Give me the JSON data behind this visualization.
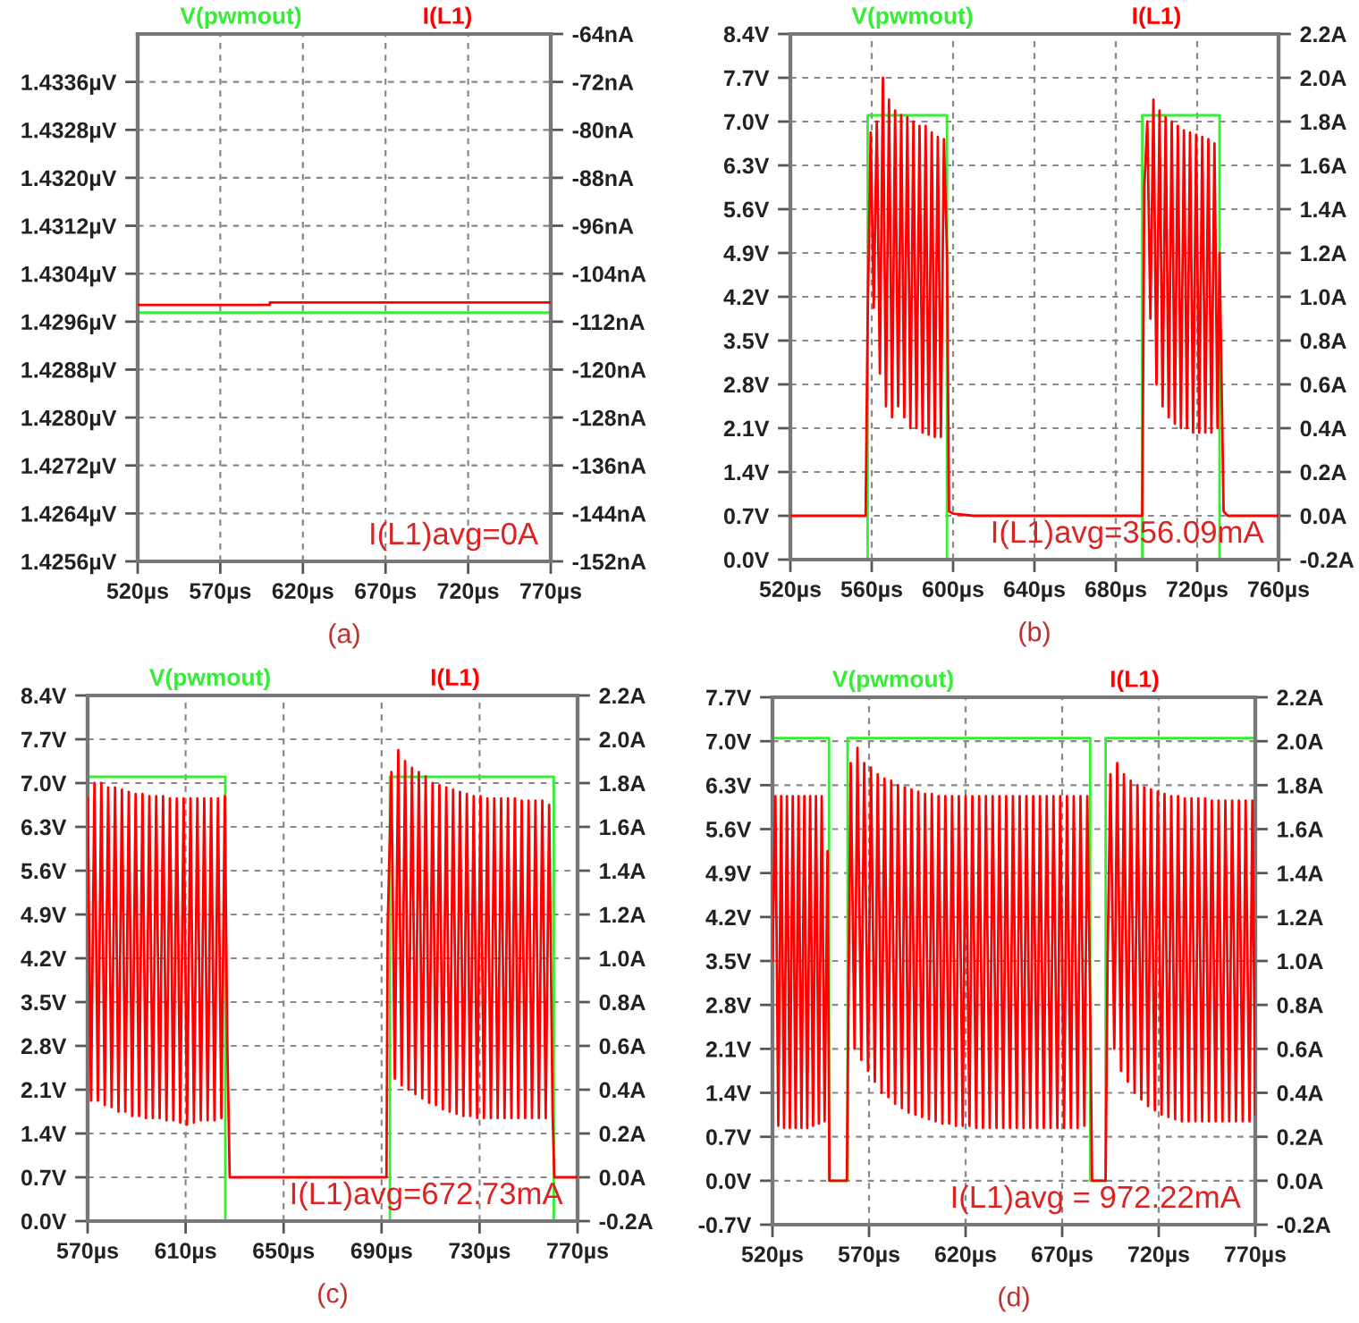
{
  "chart_data": [
    {
      "type": "line",
      "xlabel": "(a)",
      "legend": "top",
      "grid": true,
      "annotations": [
        "I(L1)avg=0A"
      ],
      "xlim": [
        520,
        770
      ],
      "xticks": [
        {
          "value": 520,
          "label": "520µs"
        },
        {
          "value": 570,
          "label": "570µs"
        },
        {
          "value": 620,
          "label": "620µs"
        },
        {
          "value": 670,
          "label": "670µs"
        },
        {
          "value": 720,
          "label": "720µs"
        },
        {
          "value": 770,
          "label": "770µs"
        }
      ],
      "ylim": [
        1.4256,
        1.4344
      ],
      "yticks": [
        {
          "value": 1.4256,
          "label": "1.4256µV"
        },
        {
          "value": 1.4264,
          "label": "1.4264µV"
        },
        {
          "value": 1.4272,
          "label": "1.4272µV"
        },
        {
          "value": 1.428,
          "label": "1.4280µV"
        },
        {
          "value": 1.4288,
          "label": "1.4288µV"
        },
        {
          "value": 1.4296,
          "label": "1.4296µV"
        },
        {
          "value": 1.4304,
          "label": "1.4304µV"
        },
        {
          "value": 1.4312,
          "label": "1.4312µV"
        },
        {
          "value": 1.432,
          "label": "1.4320µV"
        },
        {
          "value": 1.4328,
          "label": "1.4328µV"
        },
        {
          "value": 1.4336,
          "label": "1.4336µV"
        }
      ],
      "y2lim": [
        -152,
        -64
      ],
      "y2ticks": [
        {
          "value": -152,
          "label": "-152nA"
        },
        {
          "value": -144,
          "label": "-144nA"
        },
        {
          "value": -136,
          "label": "-136nA"
        },
        {
          "value": -128,
          "label": "-128nA"
        },
        {
          "value": -120,
          "label": "-120nA"
        },
        {
          "value": -112,
          "label": "-112nA"
        },
        {
          "value": -104,
          "label": "-104nA"
        },
        {
          "value": -96,
          "label": "-96nA"
        },
        {
          "value": -88,
          "label": "-88nA"
        },
        {
          "value": -80,
          "label": "-80nA"
        },
        {
          "value": -72,
          "label": "-72nA"
        },
        {
          "value": -64,
          "label": "-64nA"
        }
      ],
      "series": [
        {
          "name": "V(pwmout)",
          "color": "#33ee33",
          "x": [
            520,
            770
          ],
          "values": [
            1.42975,
            1.42975
          ]
        },
        {
          "name": "I(L1)",
          "color": "#ff0000",
          "axis": "y2",
          "x": [
            520,
            600,
            600,
            770
          ],
          "values": [
            -109.2,
            -109.2,
            -108.8,
            -108.8
          ]
        }
      ]
    },
    {
      "type": "line",
      "xlabel": "(b)",
      "legend": "top",
      "grid": true,
      "annotations": [
        "I(L1)avg=356.09mA"
      ],
      "xlim": [
        520,
        760
      ],
      "xticks": [
        {
          "value": 520,
          "label": "520µs"
        },
        {
          "value": 560,
          "label": "560µs"
        },
        {
          "value": 600,
          "label": "600µs"
        },
        {
          "value": 640,
          "label": "640µs"
        },
        {
          "value": 680,
          "label": "680µs"
        },
        {
          "value": 720,
          "label": "720µs"
        },
        {
          "value": 760,
          "label": "760µs"
        }
      ],
      "ylim": [
        0,
        8.4
      ],
      "yticks": [
        {
          "value": 0,
          "label": "0.0V"
        },
        {
          "value": 0.7,
          "label": "0.7V"
        },
        {
          "value": 1.4,
          "label": "1.4V"
        },
        {
          "value": 2.1,
          "label": "2.1V"
        },
        {
          "value": 2.8,
          "label": "2.8V"
        },
        {
          "value": 3.5,
          "label": "3.5V"
        },
        {
          "value": 4.2,
          "label": "4.2V"
        },
        {
          "value": 4.9,
          "label": "4.9V"
        },
        {
          "value": 5.6,
          "label": "5.6V"
        },
        {
          "value": 6.3,
          "label": "6.3V"
        },
        {
          "value": 7.0,
          "label": "7.0V"
        },
        {
          "value": 7.7,
          "label": "7.7V"
        },
        {
          "value": 8.4,
          "label": "8.4V"
        }
      ],
      "y2lim": [
        -0.2,
        2.2
      ],
      "y2ticks": [
        {
          "value": -0.2,
          "label": "-0.2A"
        },
        {
          "value": 0,
          "label": "0.0A"
        },
        {
          "value": 0.2,
          "label": "0.2A"
        },
        {
          "value": 0.4,
          "label": "0.4A"
        },
        {
          "value": 0.6,
          "label": "0.6A"
        },
        {
          "value": 0.8,
          "label": "0.8A"
        },
        {
          "value": 1.0,
          "label": "1.0A"
        },
        {
          "value": 1.2,
          "label": "1.2A"
        },
        {
          "value": 1.4,
          "label": "1.4A"
        },
        {
          "value": 1.6,
          "label": "1.6A"
        },
        {
          "value": 1.8,
          "label": "1.8A"
        },
        {
          "value": 2.0,
          "label": "2.0A"
        },
        {
          "value": 2.2,
          "label": "2.2A"
        }
      ],
      "series": [
        {
          "name": "V(pwmout)",
          "color": "#33ee33",
          "x": [
            520,
            558,
            558,
            597,
            597,
            693,
            693,
            731,
            731,
            760
          ],
          "values": [
            0,
            0,
            7.1,
            7.1,
            0,
            0,
            7.1,
            7.1,
            0,
            0
          ]
        },
        {
          "name": "I(L1)",
          "color": "#ff0000",
          "axis": "y2",
          "x": [
            520,
            557,
            558,
            559.5,
            561,
            562.5,
            564,
            565.5,
            567,
            568.5,
            570,
            571.5,
            573,
            574.5,
            576,
            577.5,
            579,
            580.5,
            582,
            583.5,
            585,
            586.5,
            588,
            589.5,
            591,
            592.5,
            594,
            595.5,
            597,
            598,
            600,
            610,
            693,
            694,
            695.5,
            697,
            698.5,
            700,
            701.5,
            703,
            704.5,
            706,
            707.5,
            709,
            710.5,
            712,
            713.5,
            715,
            716.5,
            718,
            719.5,
            721,
            722.5,
            724,
            725.5,
            727,
            728.5,
            730,
            731,
            733,
            735,
            760
          ],
          "values": [
            0,
            0,
            0.9,
            1.75,
            0.95,
            1.8,
            0.65,
            2.0,
            0.5,
            1.9,
            0.45,
            1.85,
            0.5,
            1.83,
            0.45,
            1.82,
            0.4,
            1.8,
            0.4,
            1.78,
            0.38,
            1.78,
            0.37,
            1.75,
            0.36,
            1.73,
            0.36,
            1.72,
            1.2,
            0.02,
            0.01,
            0,
            0,
            1.5,
            1.8,
            0.9,
            1.9,
            0.6,
            1.85,
            0.5,
            1.82,
            0.45,
            1.8,
            0.42,
            1.78,
            0.4,
            1.76,
            0.4,
            1.75,
            0.38,
            1.74,
            0.38,
            1.73,
            0.38,
            1.72,
            0.38,
            1.7,
            0.4,
            1.2,
            0.02,
            0,
            0
          ]
        }
      ]
    },
    {
      "type": "line",
      "xlabel": "(c)",
      "legend": "top",
      "grid": true,
      "annotations": [
        "I(L1)avg=672.73mA"
      ],
      "xlim": [
        570,
        770
      ],
      "xticks": [
        {
          "value": 570,
          "label": "570µs"
        },
        {
          "value": 610,
          "label": "610µs"
        },
        {
          "value": 650,
          "label": "650µs"
        },
        {
          "value": 690,
          "label": "690µs"
        },
        {
          "value": 730,
          "label": "730µs"
        },
        {
          "value": 770,
          "label": "770µs"
        }
      ],
      "ylim": [
        0,
        8.4
      ],
      "yticks": [
        {
          "value": 0,
          "label": "0.0V"
        },
        {
          "value": 0.7,
          "label": "0.7V"
        },
        {
          "value": 1.4,
          "label": "1.4V"
        },
        {
          "value": 2.1,
          "label": "2.1V"
        },
        {
          "value": 2.8,
          "label": "2.8V"
        },
        {
          "value": 3.5,
          "label": "3.5V"
        },
        {
          "value": 4.2,
          "label": "4.2V"
        },
        {
          "value": 4.9,
          "label": "4.9V"
        },
        {
          "value": 5.6,
          "label": "5.6V"
        },
        {
          "value": 6.3,
          "label": "6.3V"
        },
        {
          "value": 7.0,
          "label": "7.0V"
        },
        {
          "value": 7.7,
          "label": "7.7V"
        },
        {
          "value": 8.4,
          "label": "8.4V"
        }
      ],
      "y2lim": [
        -0.2,
        2.2
      ],
      "y2ticks": [
        {
          "value": -0.2,
          "label": "-0.2A"
        },
        {
          "value": 0,
          "label": "0.0A"
        },
        {
          "value": 0.2,
          "label": "0.2A"
        },
        {
          "value": 0.4,
          "label": "0.4A"
        },
        {
          "value": 0.6,
          "label": "0.6A"
        },
        {
          "value": 0.8,
          "label": "0.8A"
        },
        {
          "value": 1.0,
          "label": "1.0A"
        },
        {
          "value": 1.2,
          "label": "1.2A"
        },
        {
          "value": 1.4,
          "label": "1.4A"
        },
        {
          "value": 1.6,
          "label": "1.6A"
        },
        {
          "value": 1.8,
          "label": "1.8A"
        },
        {
          "value": 2.0,
          "label": "2.0A"
        },
        {
          "value": 2.2,
          "label": "2.2A"
        }
      ],
      "series": [
        {
          "name": "V(pwmout)",
          "color": "#33ee33",
          "x": [
            570,
            626.2,
            626.2,
            693.4,
            693.4,
            760.3,
            760.3,
            770
          ],
          "values": [
            7.1,
            7.1,
            0,
            0,
            7.1,
            7.1,
            0,
            0
          ]
        },
        {
          "name": "I(L1)",
          "color": "#ff0000",
          "axis": "y2",
          "x": [
            570,
            571.4,
            572.8,
            574.2,
            575.6,
            577,
            578.4,
            579.8,
            581.2,
            582.6,
            584,
            585.4,
            586.8,
            588.2,
            589.6,
            591,
            592.4,
            593.8,
            595.2,
            596.6,
            598,
            599.4,
            600.8,
            602.2,
            603.6,
            605,
            606.4,
            607.8,
            609.2,
            610.6,
            612,
            613.4,
            614.8,
            616.2,
            617.6,
            619,
            620.4,
            621.8,
            623.2,
            624.6,
            626,
            627,
            628,
            692,
            692.5,
            694,
            695.4,
            696.8,
            698.2,
            699.6,
            701,
            702.4,
            703.8,
            705.2,
            706.6,
            708,
            709.4,
            710.8,
            712.2,
            713.6,
            715,
            716.4,
            717.8,
            719.2,
            720.6,
            722,
            723.4,
            724.8,
            726.2,
            727.6,
            729,
            730.4,
            731.8,
            733.2,
            734.6,
            736,
            737.4,
            738.8,
            740.2,
            741.6,
            743,
            744.4,
            745.8,
            747.2,
            748.6,
            750,
            751.4,
            752.8,
            754.2,
            755.6,
            757,
            758.4,
            759.8,
            760.5,
            770
          ],
          "values": [
            1.73,
            0.35,
            1.8,
            0.35,
            1.8,
            0.33,
            1.78,
            0.32,
            1.78,
            0.3,
            1.77,
            0.3,
            1.76,
            0.28,
            1.75,
            0.28,
            1.75,
            0.27,
            1.74,
            0.27,
            1.74,
            0.27,
            1.74,
            0.26,
            1.73,
            0.26,
            1.73,
            0.25,
            1.73,
            0.24,
            1.73,
            0.25,
            1.73,
            0.26,
            1.73,
            0.26,
            1.73,
            0.26,
            1.73,
            0.27,
            1.74,
            0.62,
            0,
            0,
            1.15,
            1.85,
            0.45,
            1.95,
            0.42,
            1.9,
            0.4,
            1.87,
            0.38,
            1.85,
            0.36,
            1.83,
            0.34,
            1.8,
            0.33,
            1.79,
            0.31,
            1.78,
            0.3,
            1.77,
            0.29,
            1.76,
            0.28,
            1.75,
            0.28,
            1.74,
            0.27,
            1.74,
            0.27,
            1.73,
            0.27,
            1.73,
            0.27,
            1.73,
            0.27,
            1.73,
            0.27,
            1.73,
            0.27,
            1.72,
            0.27,
            1.72,
            0.27,
            1.72,
            0.27,
            1.72,
            0.27,
            1.7,
            0.3,
            0,
            0
          ]
        }
      ]
    },
    {
      "type": "line",
      "xlabel": "(d)",
      "legend": "top",
      "grid": true,
      "annotations": [
        "I(L1)avg = 972.22mA"
      ],
      "xlim": [
        520,
        770
      ],
      "xticks": [
        {
          "value": 520,
          "label": "520µs"
        },
        {
          "value": 570,
          "label": "570µs"
        },
        {
          "value": 620,
          "label": "620µs"
        },
        {
          "value": 670,
          "label": "670µs"
        },
        {
          "value": 720,
          "label": "720µs"
        },
        {
          "value": 770,
          "label": "770µs"
        }
      ],
      "ylim": [
        -0.7,
        7.7
      ],
      "yticks": [
        {
          "value": -0.7,
          "label": "-0.7V"
        },
        {
          "value": 0,
          "label": "0.0V"
        },
        {
          "value": 0.7,
          "label": "0.7V"
        },
        {
          "value": 1.4,
          "label": "1.4V"
        },
        {
          "value": 2.1,
          "label": "2.1V"
        },
        {
          "value": 2.8,
          "label": "2.8V"
        },
        {
          "value": 3.5,
          "label": "3.5V"
        },
        {
          "value": 4.2,
          "label": "4.2V"
        },
        {
          "value": 4.9,
          "label": "4.9V"
        },
        {
          "value": 5.6,
          "label": "5.6V"
        },
        {
          "value": 6.3,
          "label": "6.3V"
        },
        {
          "value": 7.0,
          "label": "7.0V"
        },
        {
          "value": 7.7,
          "label": "7.7V"
        }
      ],
      "y2lim": [
        -0.2,
        2.2
      ],
      "y2ticks": [
        {
          "value": -0.2,
          "label": "-0.2A"
        },
        {
          "value": 0,
          "label": "0.0A"
        },
        {
          "value": 0.2,
          "label": "0.2A"
        },
        {
          "value": 0.4,
          "label": "0.4A"
        },
        {
          "value": 0.6,
          "label": "0.6A"
        },
        {
          "value": 0.8,
          "label": "0.8A"
        },
        {
          "value": 1.0,
          "label": "1.0A"
        },
        {
          "value": 1.2,
          "label": "1.2A"
        },
        {
          "value": 1.4,
          "label": "1.4A"
        },
        {
          "value": 1.6,
          "label": "1.6A"
        },
        {
          "value": 1.8,
          "label": "1.8A"
        },
        {
          "value": 2.0,
          "label": "2.0A"
        },
        {
          "value": 2.2,
          "label": "2.2A"
        }
      ],
      "series": [
        {
          "name": "V(pwmout)",
          "color": "#33ee33",
          "x": [
            520,
            549.3,
            549.3,
            558.9,
            558.9,
            684.5,
            684.5,
            692.5,
            692.5,
            770
          ],
          "values": [
            7.05,
            7.05,
            0,
            0,
            7.05,
            7.05,
            0,
            0,
            7.05,
            7.05
          ]
        },
        {
          "name": "I(L1)",
          "color": "#ff0000",
          "axis": "y2",
          "x": [
            520,
            521.5,
            523,
            524.5,
            526,
            527.5,
            529,
            530.5,
            532,
            533.5,
            535,
            536.5,
            538,
            539.5,
            541,
            542.5,
            544,
            545.5,
            547,
            548.5,
            549.5,
            558.5,
            559,
            560.5,
            562.5,
            564,
            566,
            567.5,
            569.5,
            571,
            573,
            574.5,
            576.5,
            578,
            580,
            581.5,
            583.5,
            585,
            587,
            588.5,
            590.5,
            592,
            594,
            595.5,
            597.5,
            599,
            601,
            602.5,
            604.5,
            606,
            608,
            609.5,
            611.5,
            613,
            615,
            616.5,
            618.5,
            620,
            622,
            623.5,
            625.5,
            627,
            629,
            630.5,
            632.5,
            634,
            636,
            637.5,
            639.5,
            641,
            643,
            644.5,
            646.5,
            648,
            650,
            651.5,
            653.5,
            655,
            657,
            658.5,
            660.5,
            662,
            664,
            665.5,
            667.5,
            669,
            671,
            672.5,
            674.5,
            676,
            678,
            679.5,
            681.5,
            683,
            684.5,
            685.5,
            692.5,
            693.5,
            695,
            697,
            698.5,
            700.5,
            702,
            704,
            705.5,
            707.5,
            709,
            711,
            712.5,
            714.5,
            716,
            718,
            719.5,
            721.5,
            723,
            725,
            726.5,
            728.5,
            730,
            732,
            733.5,
            735.5,
            737,
            739,
            740.5,
            742.5,
            744,
            746,
            747.5,
            749.5,
            751,
            753,
            754.5,
            756.5,
            758,
            760,
            761.5,
            763.5,
            765,
            767,
            768.5,
            770
          ],
          "values": [
            1.0,
            1.75,
            0.25,
            1.75,
            0.24,
            1.75,
            0.24,
            1.75,
            0.24,
            1.75,
            0.24,
            1.75,
            0.24,
            1.75,
            0.25,
            1.75,
            0.26,
            1.75,
            0.27,
            1.5,
            0,
            0,
            0.5,
            1.9,
            0.6,
            1.97,
            0.55,
            1.9,
            0.5,
            1.88,
            0.45,
            1.85,
            0.4,
            1.83,
            0.38,
            1.82,
            0.35,
            1.8,
            0.33,
            1.79,
            0.31,
            1.78,
            0.3,
            1.77,
            0.29,
            1.76,
            0.28,
            1.76,
            0.27,
            1.75,
            0.26,
            1.75,
            0.26,
            1.75,
            0.25,
            1.75,
            0.25,
            1.75,
            0.25,
            1.75,
            0.24,
            1.75,
            0.24,
            1.75,
            0.24,
            1.75,
            0.24,
            1.75,
            0.24,
            1.75,
            0.24,
            1.75,
            0.24,
            1.75,
            0.24,
            1.75,
            0.24,
            1.75,
            0.24,
            1.75,
            0.24,
            1.75,
            0.24,
            1.75,
            0.24,
            1.75,
            0.24,
            1.75,
            0.24,
            1.75,
            0.24,
            1.75,
            0.25,
            1.75,
            0.8,
            0,
            0,
            1.0,
            1.85,
            0.6,
            1.9,
            0.5,
            1.85,
            0.45,
            1.82,
            0.4,
            1.8,
            0.37,
            1.79,
            0.34,
            1.78,
            0.32,
            1.77,
            0.3,
            1.76,
            0.29,
            1.75,
            0.28,
            1.75,
            0.27,
            1.74,
            0.27,
            1.74,
            0.27,
            1.74,
            0.27,
            1.74,
            0.27,
            1.73,
            0.27,
            1.73,
            0.27,
            1.73,
            0.27,
            1.73,
            0.27,
            1.73,
            0.27,
            1.73,
            0.27,
            1.73,
            0.3
          ]
        }
      ]
    }
  ]
}
